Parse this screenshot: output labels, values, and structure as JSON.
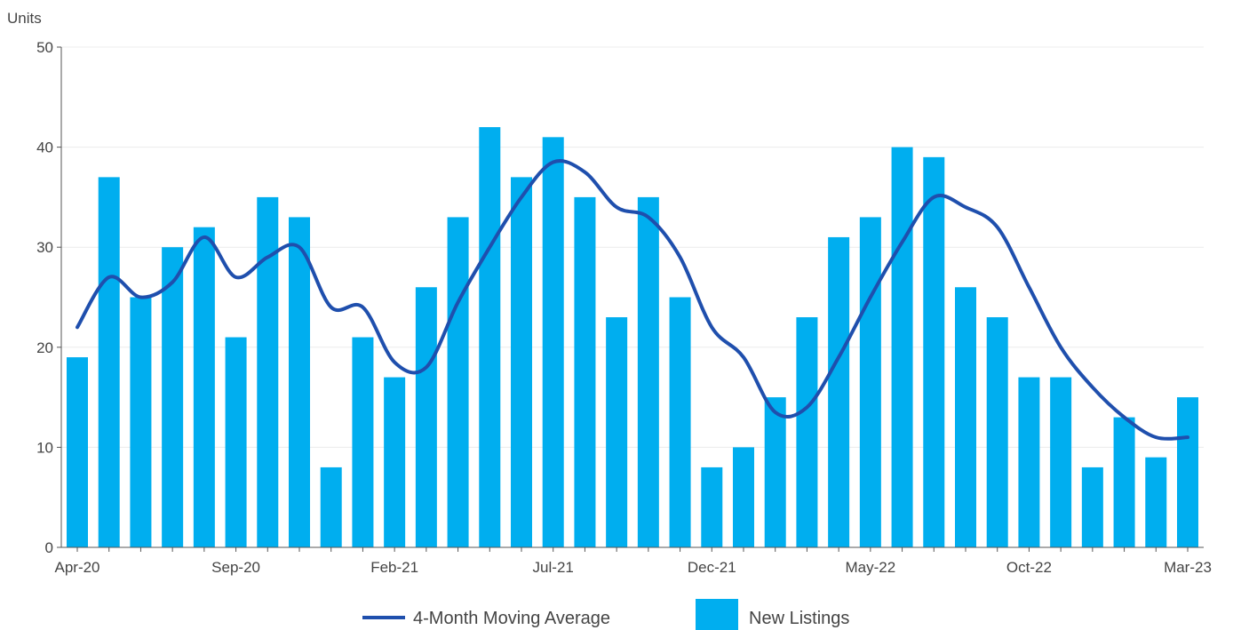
{
  "chart_data": {
    "type": "bar",
    "ylabel": "Units",
    "ylim": [
      0,
      50
    ],
    "yticks": [
      "0",
      "10",
      "20",
      "30",
      "40",
      "50"
    ],
    "categories": [
      "Apr-20",
      "May-20",
      "Jun-20",
      "Jul-20",
      "Aug-20",
      "Sep-20",
      "Oct-20",
      "Nov-20",
      "Dec-20",
      "Jan-21",
      "Feb-21",
      "Mar-21",
      "Apr-21",
      "May-21",
      "Jun-21",
      "Jul-21",
      "Aug-21",
      "Sep-21",
      "Oct-21",
      "Nov-21",
      "Dec-21",
      "Jan-22",
      "Feb-22",
      "Mar-22",
      "Apr-22",
      "May-22",
      "Jun-22",
      "Jul-22",
      "Aug-22",
      "Sep-22",
      "Oct-22",
      "Nov-22",
      "Dec-22",
      "Jan-23",
      "Feb-23",
      "Mar-23"
    ],
    "xticks": [
      "Apr-20",
      "Sep-20",
      "Feb-21",
      "Jul-21",
      "Dec-21",
      "May-22",
      "Oct-22",
      "Mar-23"
    ],
    "series": [
      {
        "name": "New Listings",
        "kind": "bar",
        "color": "#00aeef",
        "values": [
          19,
          37,
          25,
          30,
          32,
          21,
          35,
          33,
          8,
          21,
          17,
          26,
          33,
          42,
          37,
          41,
          35,
          23,
          35,
          25,
          8,
          10,
          15,
          23,
          31,
          33,
          40,
          39,
          26,
          23,
          17,
          17,
          8,
          13,
          9,
          15
        ]
      },
      {
        "name": "4-Month Moving Average",
        "kind": "line",
        "color": "#1f4fad",
        "values": [
          22,
          27,
          25,
          26.5,
          31,
          27,
          29,
          30,
          24,
          24,
          18.5,
          18,
          24.5,
          30,
          35,
          38.5,
          37.5,
          34,
          33,
          29,
          22,
          19,
          13.5,
          14,
          19,
          25,
          30.5,
          35,
          34,
          32,
          26,
          20,
          16,
          13,
          11,
          11
        ]
      }
    ]
  }
}
